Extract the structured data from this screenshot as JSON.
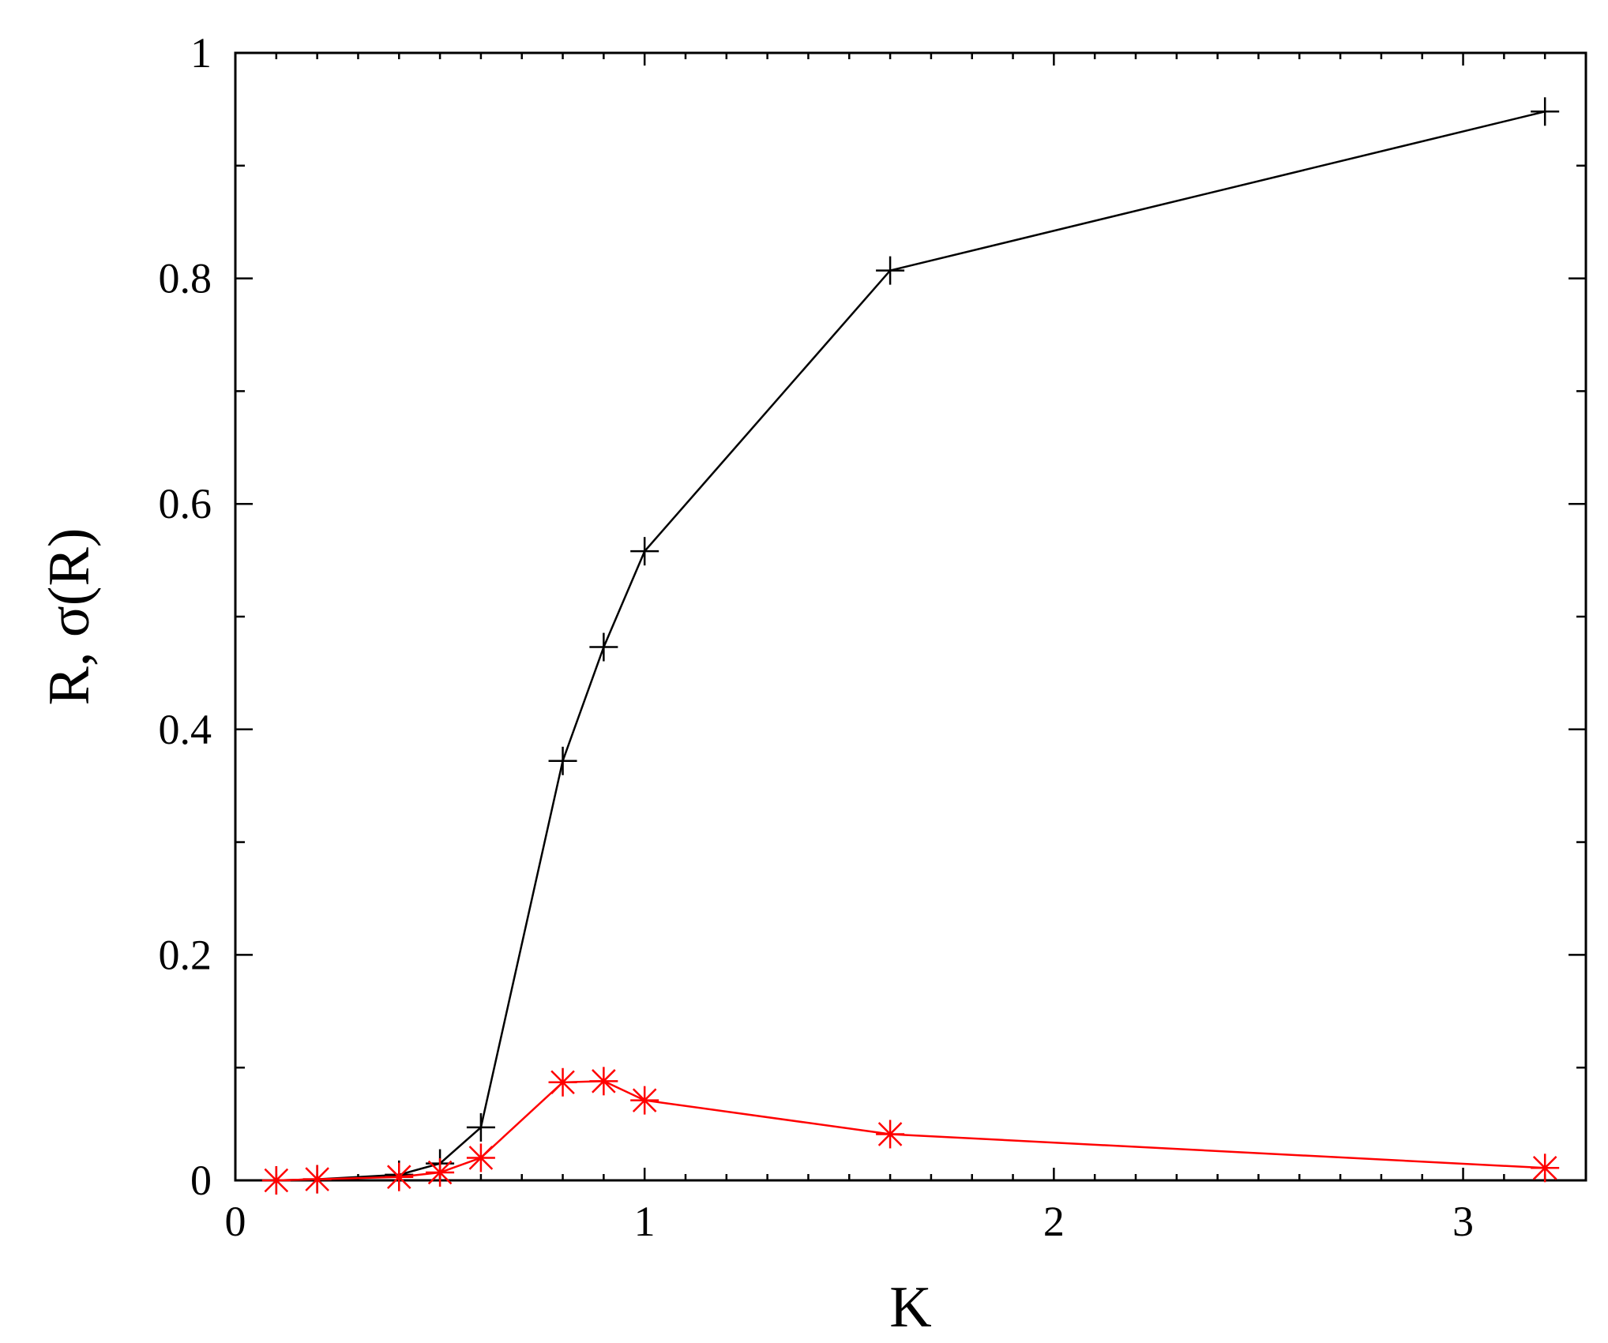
{
  "chart_data": {
    "type": "line",
    "title": "",
    "xlabel": "K",
    "ylabel": "R, σ(R)",
    "xlim": [
      0,
      3.3
    ],
    "ylim": [
      0,
      1
    ],
    "grid": false,
    "legend": "none",
    "x_ticks": [
      {
        "value": 0,
        "label": "0"
      },
      {
        "value": 1,
        "label": "1"
      },
      {
        "value": 2,
        "label": "2"
      },
      {
        "value": 3,
        "label": "3"
      }
    ],
    "y_ticks": [
      {
        "value": 0,
        "label": "0"
      },
      {
        "value": 0.2,
        "label": "0.2"
      },
      {
        "value": 0.4,
        "label": "0.4"
      },
      {
        "value": 0.6,
        "label": "0.6"
      },
      {
        "value": 0.8,
        "label": "0.8"
      },
      {
        "value": 1,
        "label": "1"
      }
    ],
    "x_minor_step": 0.1,
    "y_minor_step": 0.1,
    "series": [
      {
        "color": "#000000",
        "marker": "plus",
        "x": [
          0.1,
          0.2,
          0.4,
          0.5,
          0.6,
          0.8,
          0.9,
          1.0,
          1.6,
          3.2
        ],
        "y": [
          0.0,
          0.001,
          0.005,
          0.015,
          0.047,
          0.372,
          0.473,
          0.558,
          0.807,
          0.948
        ]
      },
      {
        "color": "#ff0000",
        "marker": "asterisk",
        "x": [
          0.1,
          0.2,
          0.4,
          0.5,
          0.6,
          0.8,
          0.9,
          1.0,
          1.6,
          3.2
        ],
        "y": [
          0.0,
          0.001,
          0.003,
          0.007,
          0.02,
          0.087,
          0.088,
          0.071,
          0.041,
          0.011
        ]
      }
    ]
  }
}
